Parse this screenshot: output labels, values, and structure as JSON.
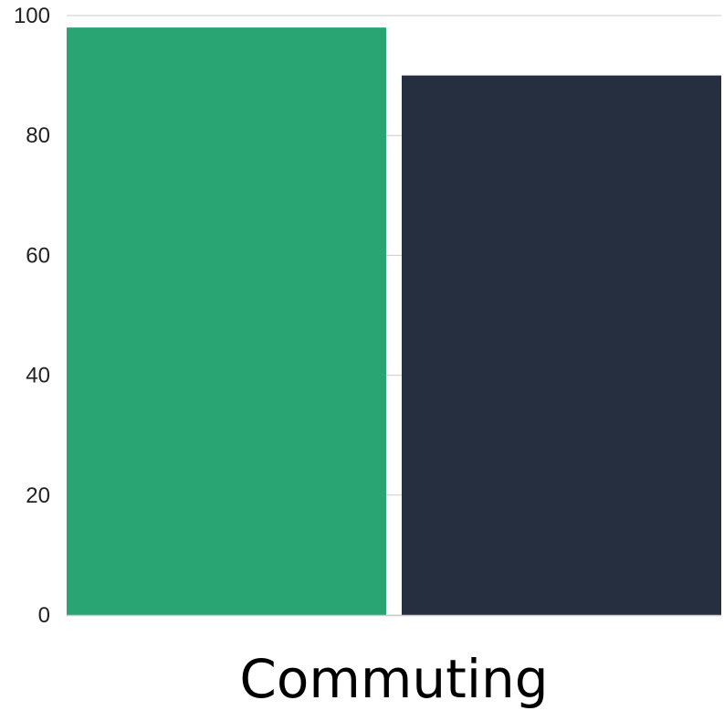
{
  "chart_data": {
    "type": "bar",
    "categories": [
      "Commuting"
    ],
    "series": [
      {
        "values": [
          98
        ],
        "color": "#29A574"
      },
      {
        "values": [
          90
        ],
        "color": "#262F40"
      }
    ],
    "ylim": [
      0,
      100
    ],
    "yticks": [
      "0",
      "20",
      "40",
      "60",
      "80",
      "100"
    ],
    "grid": false,
    "legend": "none"
  }
}
